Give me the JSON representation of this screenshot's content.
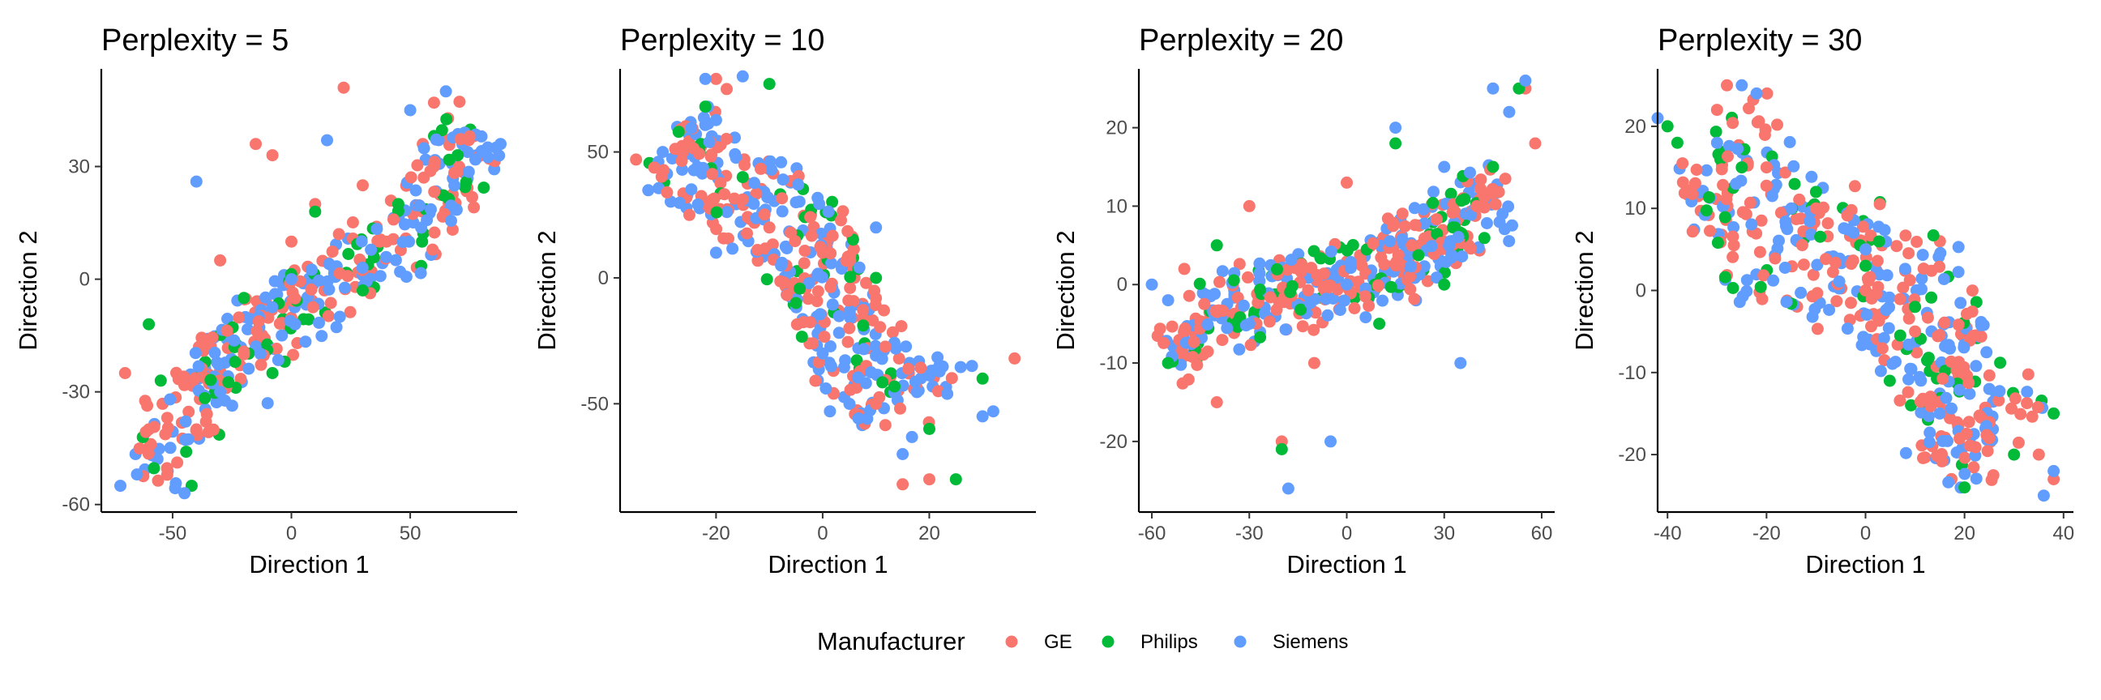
{
  "legend": {
    "title": "Manufacturer",
    "placement": "bottom",
    "entries": [
      {
        "name": "GE",
        "color": "#F8766D"
      },
      {
        "name": "Philips",
        "color": "#00BA38"
      },
      {
        "name": "Siemens",
        "color": "#619CFF"
      }
    ]
  },
  "chart_data": [
    {
      "type": "scatter",
      "title": "Perplexity = 5",
      "xlabel": "Direction 1",
      "ylabel": "Direction 2",
      "xlim": [
        -80,
        95
      ],
      "ylim": [
        -62,
        56
      ],
      "xticks": [
        -50,
        0,
        50
      ],
      "yticks": [
        -60,
        -30,
        0,
        30
      ],
      "grid": false,
      "shape": {
        "kind": "band",
        "x0": -68,
        "y0": -48,
        "x1": 82,
        "y1": 36,
        "width": 20,
        "count": 380,
        "seed": 11
      },
      "series": [
        {
          "name": "GE",
          "values": [
            [
              22,
              51
            ],
            [
              -15,
              36
            ],
            [
              -8,
              33
            ],
            [
              60,
              47
            ],
            [
              -70,
              -25
            ],
            [
              -60,
              -40
            ],
            [
              -40,
              -40
            ],
            [
              -20,
              -20
            ],
            [
              0,
              10
            ],
            [
              20,
              12
            ],
            [
              40,
              10
            ],
            [
              60,
              30
            ],
            [
              75,
              38
            ],
            [
              -30,
              5
            ],
            [
              10,
              20
            ],
            [
              30,
              25
            ]
          ]
        },
        {
          "name": "Philips",
          "values": [
            [
              -55,
              -27
            ],
            [
              -42,
              -55
            ],
            [
              -8,
              -25
            ],
            [
              10,
              18
            ],
            [
              45,
              20
            ],
            [
              70,
              33
            ],
            [
              -60,
              -12
            ],
            [
              -20,
              -5
            ],
            [
              30,
              -3
            ],
            [
              55,
              10
            ]
          ]
        },
        {
          "name": "Siemens",
          "values": [
            [
              -40,
              26
            ],
            [
              80,
              38
            ],
            [
              88,
              36
            ],
            [
              -72,
              -55
            ],
            [
              -65,
              -52
            ],
            [
              -45,
              -57
            ],
            [
              65,
              50
            ],
            [
              15,
              37
            ],
            [
              -10,
              -33
            ],
            [
              0,
              0
            ],
            [
              50,
              45
            ],
            [
              -30,
              -30
            ]
          ]
        }
      ]
    },
    {
      "type": "scatter",
      "title": "Perplexity = 10",
      "xlabel": "Direction 1",
      "ylabel": "Direction 2",
      "xlim": [
        -38,
        40
      ],
      "ylim": [
        -93,
        83
      ],
      "xticks": [
        -20,
        0,
        20
      ],
      "yticks": [
        -50,
        0,
        50
      ],
      "grid": false,
      "shape": {
        "kind": "band",
        "x0": -26,
        "y0": 60,
        "x1": 20,
        "y1": -55,
        "width": 26,
        "count": 400,
        "seed": 23
      },
      "series": [
        {
          "name": "GE",
          "values": [
            [
              -35,
              47
            ],
            [
              -20,
              79
            ],
            [
              -18,
              75
            ],
            [
              36,
              -32
            ],
            [
              15,
              -82
            ],
            [
              20,
              -80
            ],
            [
              -10,
              20
            ],
            [
              5,
              -20
            ],
            [
              0,
              10
            ],
            [
              -25,
              25
            ],
            [
              10,
              -50
            ]
          ]
        },
        {
          "name": "Philips",
          "values": [
            [
              -27,
              58
            ],
            [
              -22,
              68
            ],
            [
              -10,
              77
            ],
            [
              25,
              -80
            ],
            [
              30,
              -40
            ],
            [
              -5,
              -10
            ],
            [
              10,
              0
            ],
            [
              20,
              -60
            ],
            [
              -15,
              40
            ]
          ]
        },
        {
          "name": "Siemens",
          "values": [
            [
              -30,
              50
            ],
            [
              -22,
              79
            ],
            [
              -15,
              80
            ],
            [
              32,
              -53
            ],
            [
              30,
              -55
            ],
            [
              28,
              -35
            ],
            [
              -5,
              30
            ],
            [
              15,
              -70
            ],
            [
              0,
              -30
            ],
            [
              -20,
              10
            ],
            [
              10,
              20
            ]
          ]
        }
      ]
    },
    {
      "type": "scatter",
      "title": "Perplexity = 20",
      "xlabel": "Direction 1",
      "ylabel": "Direction 2",
      "xlim": [
        -64,
        64
      ],
      "ylim": [
        -29,
        27.5
      ],
      "xticks": [
        -60,
        -30,
        0,
        30,
        60
      ],
      "yticks": [
        -20,
        -10,
        0,
        10,
        20
      ],
      "grid": false,
      "shape": {
        "kind": "band",
        "x0": -55,
        "y0": -8,
        "x1": 50,
        "y1": 10,
        "width": 14,
        "count": 420,
        "seed": 37
      },
      "series": [
        {
          "name": "GE",
          "values": [
            [
              -50,
              2
            ],
            [
              -30,
              10
            ],
            [
              55,
              25
            ],
            [
              58,
              18
            ],
            [
              -20,
              -20
            ],
            [
              0,
              13
            ],
            [
              20,
              5
            ],
            [
              -10,
              -10
            ],
            [
              40,
              10
            ],
            [
              -40,
              -15
            ]
          ]
        },
        {
          "name": "Philips",
          "values": [
            [
              53,
              25
            ],
            [
              15,
              18
            ],
            [
              -20,
              -21
            ],
            [
              30,
              0
            ],
            [
              -40,
              5
            ],
            [
              10,
              -5
            ],
            [
              45,
              15
            ],
            [
              -55,
              -10
            ]
          ]
        },
        {
          "name": "Siemens",
          "values": [
            [
              -60,
              0
            ],
            [
              -55,
              -2
            ],
            [
              55,
              26
            ],
            [
              50,
              22
            ],
            [
              -18,
              -26
            ],
            [
              -5,
              -20
            ],
            [
              15,
              20
            ],
            [
              30,
              15
            ],
            [
              0,
              0
            ],
            [
              -30,
              -5
            ],
            [
              35,
              -10
            ],
            [
              45,
              25
            ]
          ]
        }
      ]
    },
    {
      "type": "scatter",
      "title": "Perplexity = 30",
      "xlabel": "Direction 1",
      "ylabel": "Direction 2",
      "xlim": [
        -42,
        42
      ],
      "ylim": [
        -27,
        27
      ],
      "xticks": [
        -40,
        -20,
        0,
        20,
        40
      ],
      "yticks": [
        -20,
        -10,
        0,
        10,
        20
      ],
      "grid": false,
      "shape": {
        "kind": "band",
        "x0": -32,
        "y0": 18,
        "x1": 32,
        "y1": -18,
        "width": 18,
        "count": 440,
        "seed": 53
      },
      "series": [
        {
          "name": "GE",
          "values": [
            [
              -28,
              25
            ],
            [
              -30,
              22
            ],
            [
              35,
              -20
            ],
            [
              38,
              -23
            ],
            [
              -10,
              10
            ],
            [
              0,
              0
            ],
            [
              10,
              -5
            ],
            [
              20,
              -10
            ],
            [
              -20,
              15
            ],
            [
              25,
              -18
            ]
          ]
        },
        {
          "name": "Philips",
          "values": [
            [
              -40,
              20
            ],
            [
              -38,
              18
            ],
            [
              20,
              -24
            ],
            [
              38,
              -15
            ],
            [
              -10,
              12
            ],
            [
              0,
              3
            ],
            [
              10,
              -2
            ],
            [
              -25,
              15
            ],
            [
              30,
              -20
            ]
          ]
        },
        {
          "name": "Siemens",
          "values": [
            [
              -42,
              21
            ],
            [
              -25,
              25
            ],
            [
              -22,
              24
            ],
            [
              36,
              -25
            ],
            [
              38,
              -22
            ],
            [
              0,
              5
            ],
            [
              -15,
              10
            ],
            [
              15,
              -15
            ],
            [
              25,
              -12
            ],
            [
              -30,
              18
            ]
          ]
        }
      ]
    }
  ]
}
